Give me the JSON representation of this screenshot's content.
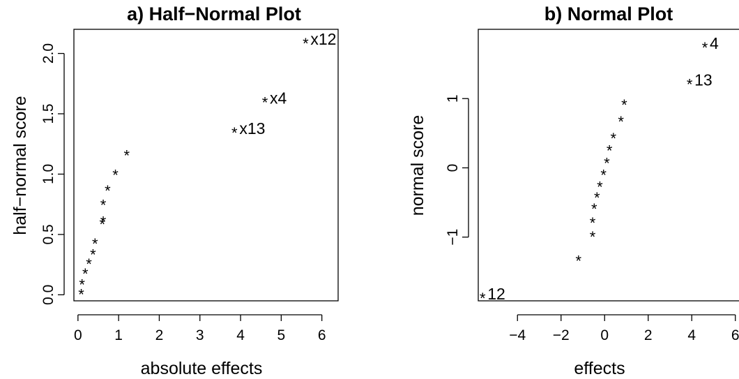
{
  "chart_data": [
    {
      "type": "scatter",
      "title": "a) Half−Normal Plot",
      "xlabel": "absolute effects",
      "ylabel": "half−normal score",
      "xlim": [
        -0.1,
        6.4
      ],
      "ylim": [
        -0.05,
        2.2
      ],
      "x_ticks": [
        0,
        1,
        2,
        3,
        4,
        5,
        6
      ],
      "x_tick_labels": [
        "0",
        "1",
        "2",
        "3",
        "4",
        "5",
        "6"
      ],
      "y_ticks": [
        0.0,
        0.5,
        1.0,
        1.5,
        2.0
      ],
      "y_tick_labels": [
        "0.0",
        "0.5",
        "1.0",
        "1.5",
        "2.0"
      ],
      "marker": "*",
      "grid": false,
      "points": [
        {
          "x": 0.08,
          "y": 0.04
        },
        {
          "x": 0.1,
          "y": 0.12
        },
        {
          "x": 0.18,
          "y": 0.21
        },
        {
          "x": 0.27,
          "y": 0.29
        },
        {
          "x": 0.37,
          "y": 0.37
        },
        {
          "x": 0.42,
          "y": 0.46
        },
        {
          "x": 0.6,
          "y": 0.62
        },
        {
          "x": 0.62,
          "y": 0.64
        },
        {
          "x": 0.62,
          "y": 0.78
        },
        {
          "x": 0.73,
          "y": 0.9
        },
        {
          "x": 0.92,
          "y": 1.03
        },
        {
          "x": 1.2,
          "y": 1.19
        },
        {
          "x": 3.85,
          "y": 1.38,
          "label": "x13"
        },
        {
          "x": 4.6,
          "y": 1.63,
          "label": "x4"
        },
        {
          "x": 5.6,
          "y": 2.12,
          "label": "x12"
        }
      ]
    },
    {
      "type": "scatter",
      "title": "b) Normal Plot",
      "xlabel": "effects",
      "ylabel": "normal score",
      "xlim": [
        -5.8,
        7.0
      ],
      "ylim": [
        -1.92,
        2.0
      ],
      "x_ticks": [
        -4,
        -2,
        0,
        2,
        4,
        6
      ],
      "x_tick_labels": [
        "−4",
        "−2",
        "0",
        "2",
        "4",
        "6"
      ],
      "y_ticks": [
        -1,
        0,
        1
      ],
      "y_tick_labels": [
        "−1",
        "0",
        "1"
      ],
      "marker": "*",
      "grid": false,
      "points": [
        {
          "x": -5.6,
          "y": -1.82,
          "label": "12"
        },
        {
          "x": -1.2,
          "y": -1.28
        },
        {
          "x": -0.55,
          "y": -0.93
        },
        {
          "x": -0.55,
          "y": -0.73
        },
        {
          "x": -0.48,
          "y": -0.53
        },
        {
          "x": -0.35,
          "y": -0.37
        },
        {
          "x": -0.22,
          "y": -0.21
        },
        {
          "x": -0.05,
          "y": -0.04
        },
        {
          "x": 0.1,
          "y": 0.13
        },
        {
          "x": 0.22,
          "y": 0.31
        },
        {
          "x": 0.4,
          "y": 0.49
        },
        {
          "x": 0.75,
          "y": 0.73
        },
        {
          "x": 0.9,
          "y": 0.97
        },
        {
          "x": 3.9,
          "y": 1.27,
          "label": "13"
        },
        {
          "x": 4.6,
          "y": 1.8,
          "label": "4"
        }
      ]
    }
  ]
}
